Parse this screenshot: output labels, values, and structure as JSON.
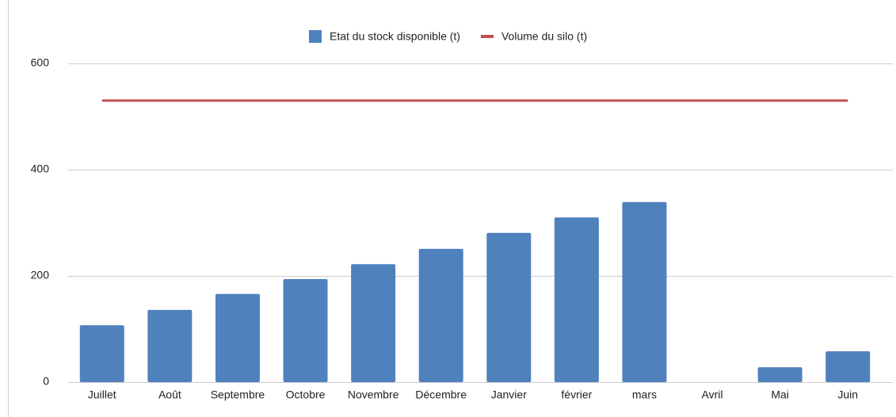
{
  "chart_data": {
    "type": "bar",
    "categories": [
      "Juillet",
      "Août",
      "Septembre",
      "Octobre",
      "Novembre",
      "Décembre",
      "Janvier",
      "février",
      "mars",
      "Avril",
      "Mai",
      "Juin"
    ],
    "series": [
      {
        "name": "Etat du stock disponible (t)",
        "type": "bar",
        "color": "#4f81bd",
        "values": [
          107,
          136,
          166,
          194,
          222,
          251,
          281,
          310,
          339,
          0,
          28,
          58
        ]
      },
      {
        "name": "Volume du silo (t)",
        "type": "line",
        "color": "#c0504d",
        "values": [
          530,
          530,
          530,
          530,
          530,
          530,
          530,
          530,
          530,
          530,
          530,
          530
        ]
      }
    ],
    "ylim": [
      0,
      600
    ],
    "yticks": [
      0,
      200,
      400,
      600
    ],
    "grid": true,
    "legend": "top"
  }
}
